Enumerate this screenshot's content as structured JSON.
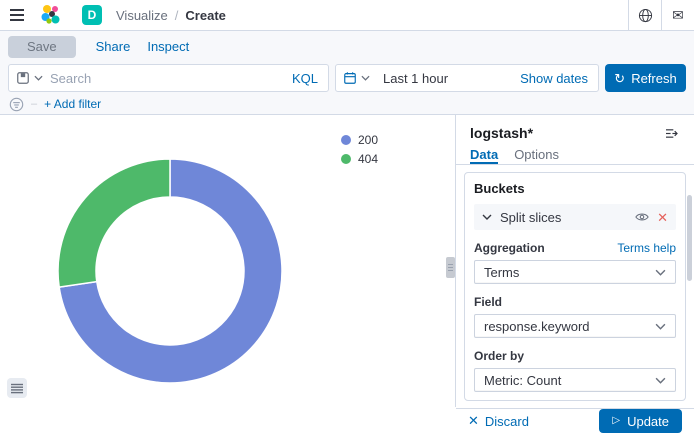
{
  "header": {
    "space_badge": "D",
    "breadcrumb": {
      "section": "Visualize",
      "separator": "/",
      "current": "Create"
    }
  },
  "toolbar": {
    "save": "Save",
    "share": "Share",
    "inspect": "Inspect"
  },
  "query_bar": {
    "search_placeholder": "Search",
    "language": "KQL",
    "time_range": "Last 1 hour",
    "show_dates": "Show dates",
    "refresh": "Refresh"
  },
  "filter_bar": {
    "add_filter": "+ Add filter"
  },
  "chart_data": {
    "type": "pie",
    "donut": true,
    "categories": [
      "200",
      "404"
    ],
    "values": [
      72.7,
      27.3
    ],
    "units": "percent (estimated from arc angles)",
    "colors": [
      "#6F87D8",
      "#4EB96A"
    ],
    "legend_position": "top-right",
    "start_angle_deg": 0,
    "title": ""
  },
  "editor": {
    "index_pattern": "logstash*",
    "tabs": [
      {
        "label": "Data",
        "active": true
      },
      {
        "label": "Options",
        "active": false
      }
    ],
    "buckets": {
      "title": "Buckets",
      "accordion": "Split slices",
      "fields": [
        {
          "label": "Aggregation",
          "value": "Terms",
          "help": "Terms help"
        },
        {
          "label": "Field",
          "value": "response.keyword"
        },
        {
          "label": "Order by",
          "value": "Metric: Count"
        }
      ]
    },
    "footer": {
      "discard": "Discard",
      "update": "Update"
    }
  },
  "colors": {
    "accent": "#006BB4",
    "border": "#D3DAE6",
    "badge": "#00BFB3",
    "danger": "#E5625C"
  }
}
